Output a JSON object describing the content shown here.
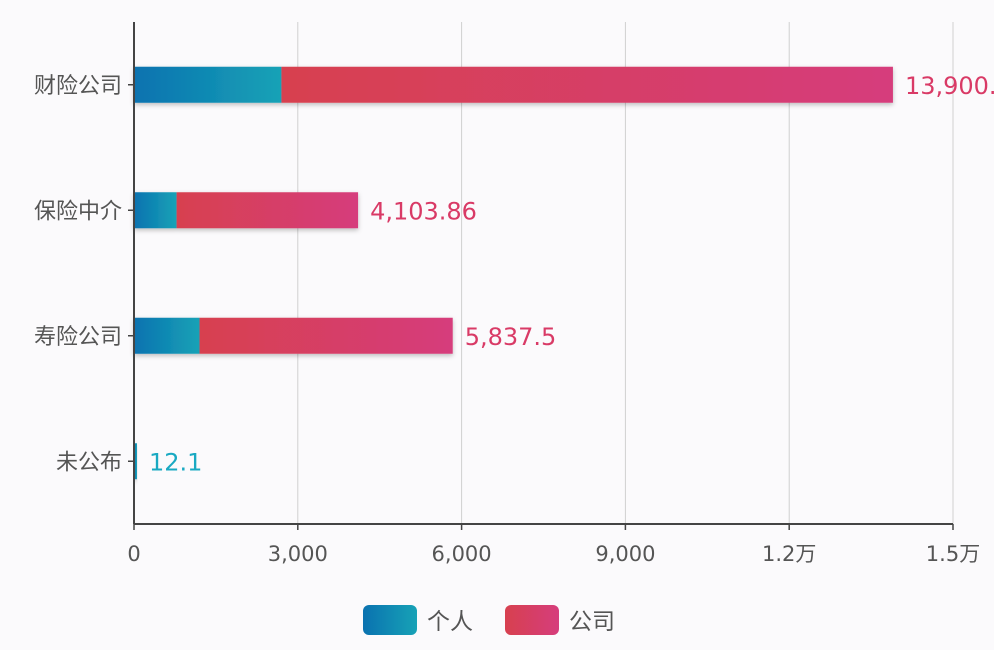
{
  "chart_data": {
    "type": "bar",
    "orientation": "horizontal",
    "stacked": true,
    "categories": [
      "财险公司",
      "保险中介",
      "寿险公司",
      "未公布"
    ],
    "series": [
      {
        "name": "个人",
        "values": [
          2700,
          780,
          1200,
          12.1
        ]
      },
      {
        "name": "公司",
        "values": [
          11200,
          3323.86,
          4637.5,
          0
        ]
      }
    ],
    "totals": [
      13900,
      4103.86,
      5837.5,
      12.1
    ],
    "total_labels": [
      "13,900.",
      "4,103.86",
      "5,837.5",
      "12.1"
    ],
    "x_ticks": [
      0,
      3000,
      6000,
      9000,
      12000,
      15000
    ],
    "x_tick_labels": [
      "0",
      "3,000",
      "6,000",
      "9,000",
      "1.2万",
      "1.5万"
    ],
    "xlim": [
      0,
      15000
    ],
    "grid": true,
    "legend_position": "bottom-center",
    "colors": {
      "personal_start": "#0a72b0",
      "personal_end": "#17a2b6",
      "company_start": "#d7404f",
      "company_end": "#d63d7c",
      "label_company": "#d93a66",
      "label_personal": "#19a9c2",
      "axis": "#444444",
      "grid": "#d0d0d0",
      "text": "#555555"
    }
  }
}
